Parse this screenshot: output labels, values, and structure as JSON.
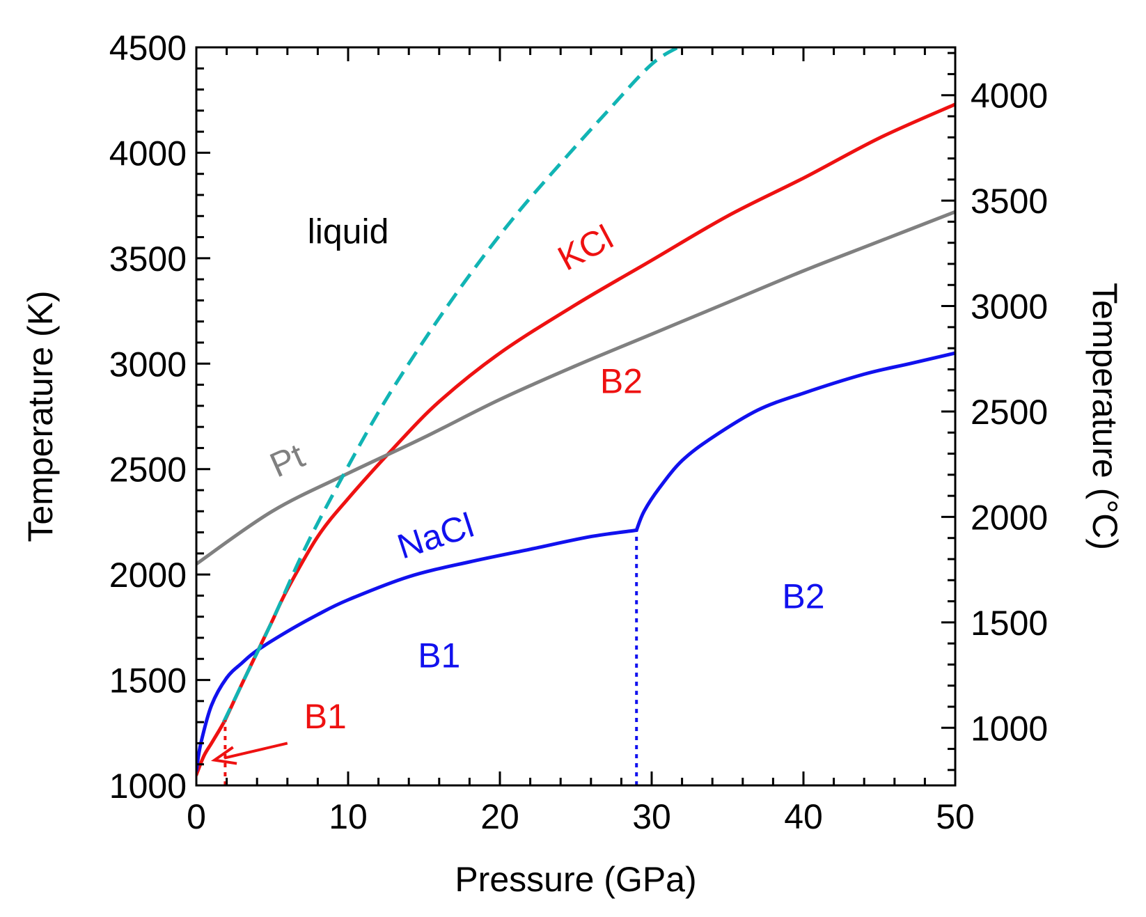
{
  "chart_data": {
    "type": "line",
    "xlabel": "Pressure (GPa)",
    "ylabel": "Temperature (K)",
    "y2label": "Temperature (°C)",
    "xlim": [
      0,
      50
    ],
    "ylim": [
      1000,
      4500
    ],
    "x_ticks": [
      0,
      10,
      20,
      30,
      40,
      50
    ],
    "y_ticks": [
      1000,
      1500,
      2000,
      2500,
      3000,
      3500,
      4000,
      4500
    ],
    "y2_ticks": [
      1000,
      1500,
      2000,
      2500,
      3000,
      3500,
      4000
    ],
    "colors": {
      "kcl": "#ee1111",
      "nacl": "#1111ee",
      "pt": "#808080",
      "dashed": "#11b4b4",
      "text": "#000000"
    },
    "series": [
      {
        "name": "KCl melting",
        "color": "#ee1111",
        "style": "solid",
        "x": [
          1.9,
          3.0,
          4.0,
          5.0,
          6.0,
          8.0,
          10.0,
          13.0,
          16.0,
          20.0,
          25.0,
          30.0,
          35.0,
          40.0,
          45.0,
          50.0
        ],
        "y": [
          1310,
          1480,
          1630,
          1780,
          1930,
          2180,
          2360,
          2600,
          2820,
          3050,
          3280,
          3490,
          3700,
          3880,
          4070,
          4230
        ]
      },
      {
        "name": "KCl B1 melting (low pressure)",
        "color": "#ee1111",
        "style": "solid",
        "x": [
          0,
          0.5,
          1.0,
          1.5,
          1.9
        ],
        "y": [
          1050,
          1140,
          1200,
          1260,
          1310
        ]
      },
      {
        "name": "NaCl melting B1",
        "color": "#1111ee",
        "style": "solid",
        "x": [
          0,
          0.3,
          1.0,
          2.0,
          3.0,
          4.0,
          6.0,
          8.0,
          10.0,
          14.0,
          18.0,
          22.0,
          26.0,
          29.0
        ],
        "y": [
          1070,
          1200,
          1380,
          1510,
          1580,
          1640,
          1730,
          1810,
          1880,
          1990,
          2060,
          2120,
          2180,
          2210
        ]
      },
      {
        "name": "NaCl melting B2",
        "color": "#1111ee",
        "style": "solid",
        "x": [
          29.0,
          29.5,
          30.5,
          32.0,
          34.0,
          37.0,
          40.0,
          44.0,
          47.0,
          50.0
        ],
        "y": [
          2210,
          2300,
          2410,
          2540,
          2650,
          2780,
          2860,
          2950,
          3000,
          3050
        ]
      },
      {
        "name": "Pt melting",
        "color": "#808080",
        "style": "solid",
        "x": [
          0,
          5.0,
          10.0,
          15.0,
          20.0,
          25.0,
          30.0,
          35.0,
          40.0,
          45.0,
          50.0
        ],
        "y": [
          2050,
          2300,
          2480,
          2650,
          2830,
          2990,
          3140,
          3290,
          3440,
          3580,
          3720
        ]
      },
      {
        "name": "Extrapolated melting curve",
        "color": "#11b4b4",
        "style": "dashed",
        "x": [
          1.8,
          3.0,
          5.0,
          7.0,
          9.0,
          12.0,
          15.0,
          18.0,
          21.0,
          24.0,
          27.0,
          30.0,
          32.0
        ],
        "y": [
          1300,
          1480,
          1780,
          2100,
          2380,
          2770,
          3110,
          3420,
          3700,
          3950,
          4190,
          4420,
          4510
        ]
      },
      {
        "name": "NaCl B1-B2 boundary",
        "color": "#1111ee",
        "style": "dotted",
        "x": [
          29.0,
          29.0
        ],
        "y": [
          1000,
          2210
        ]
      },
      {
        "name": "KCl B1-B2 boundary",
        "color": "#ee1111",
        "style": "dotted",
        "x": [
          1.9,
          1.9
        ],
        "y": [
          1000,
          1310
        ]
      }
    ],
    "annotations": [
      {
        "text": "liquid",
        "color": "#000000",
        "x": 10.0,
        "y": 3570,
        "rotation": 0
      },
      {
        "text": "KCl",
        "color": "#ee1111",
        "x": 26.0,
        "y": 3500,
        "rotation": -28
      },
      {
        "text": "Pt",
        "color": "#808080",
        "x": 6.3,
        "y": 2490,
        "rotation": -24
      },
      {
        "text": "NaCl",
        "color": "#1111ee",
        "x": 16.0,
        "y": 2130,
        "rotation": -18
      },
      {
        "text": "B2",
        "color": "#ee1111",
        "x": 28.0,
        "y": 2860,
        "rotation": 0
      },
      {
        "text": "B2",
        "color": "#1111ee",
        "x": 40.0,
        "y": 1840,
        "rotation": 0
      },
      {
        "text": "B1",
        "color": "#1111ee",
        "x": 16.0,
        "y": 1560,
        "rotation": 0
      },
      {
        "text": "B1",
        "color": "#ee1111",
        "x": 8.5,
        "y": 1270,
        "rotation": 0
      }
    ],
    "arrow": {
      "color": "#ee1111",
      "from": [
        6.0,
        1200
      ],
      "to": [
        1.2,
        1120
      ]
    }
  }
}
